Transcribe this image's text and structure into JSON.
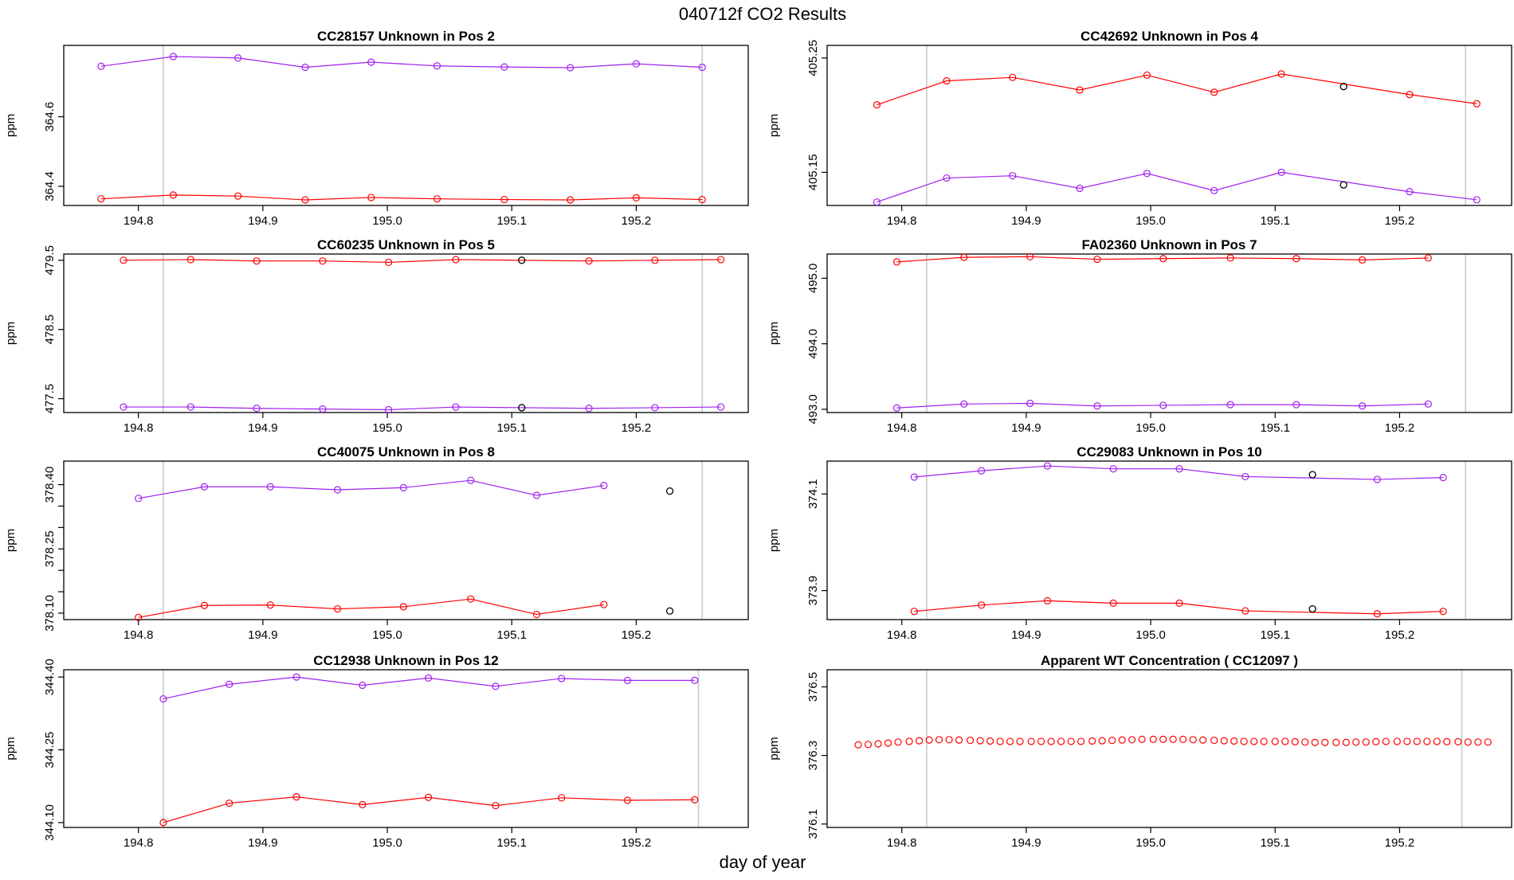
{
  "figure": {
    "title": "040712f   CO2 Results",
    "xlabel": "day of year"
  },
  "colors": {
    "red": "#ff0000",
    "purple": "#a020f0",
    "ref": "#c8c8c8",
    "frame": "#000000",
    "outlier": "#000000"
  },
  "chart_data": [
    {
      "type": "line",
      "title": "CC28157    Unknown in Pos 2",
      "ylabel": "ppm",
      "xlim": [
        194.74,
        195.29
      ],
      "ylim": [
        364.345,
        364.805
      ],
      "xticks": [
        194.8,
        194.9,
        195.0,
        195.1,
        195.2
      ],
      "xtick_labels": [
        "194.8",
        "194.9",
        "195.0",
        "195.1",
        "195.2"
      ],
      "yticks": [
        364.4,
        364.6
      ],
      "ytick_labels": [
        "364.4",
        "364.6"
      ],
      "vlines": [
        194.82,
        195.253
      ],
      "series": [
        {
          "name": "purple",
          "color": "#a020f0",
          "x": [
            194.77,
            194.828,
            194.88,
            194.934,
            194.987,
            195.04,
            195.094,
            195.147,
            195.2,
            195.253
          ],
          "y": [
            364.745,
            364.773,
            364.769,
            364.742,
            364.757,
            364.746,
            364.743,
            364.741,
            364.752,
            364.742
          ]
        },
        {
          "name": "red",
          "color": "#ff0000",
          "x": [
            194.77,
            194.828,
            194.88,
            194.934,
            194.987,
            195.04,
            195.094,
            195.147,
            195.2,
            195.253
          ],
          "y": [
            364.364,
            364.375,
            364.372,
            364.361,
            364.368,
            364.364,
            364.362,
            364.361,
            364.367,
            364.362
          ]
        }
      ],
      "outliers": []
    },
    {
      "type": "line",
      "title": "CC42692    Unknown in Pos 4",
      "ylabel": "ppm",
      "xlim": [
        194.74,
        195.29
      ],
      "ylim": [
        405.121,
        405.261
      ],
      "xticks": [
        194.8,
        194.9,
        195.0,
        195.1,
        195.2
      ],
      "xtick_labels": [
        "194.8",
        "194.9",
        "195.0",
        "195.1",
        "195.2"
      ],
      "yticks": [
        405.15,
        405.25
      ],
      "ytick_labels": [
        "405.15",
        "405.25"
      ],
      "vlines": [
        194.82,
        195.253
      ],
      "series": [
        {
          "name": "red",
          "color": "#ff0000",
          "x": [
            194.78,
            194.836,
            194.889,
            194.943,
            194.997,
            195.051,
            195.105,
            195.208,
            195.262
          ],
          "y": [
            405.209,
            405.23,
            405.233,
            405.222,
            405.235,
            405.22,
            405.236,
            405.218,
            405.21
          ]
        },
        {
          "name": "purple",
          "color": "#a020f0",
          "x": [
            194.78,
            194.836,
            194.889,
            194.943,
            194.997,
            195.051,
            195.105,
            195.208,
            195.262
          ],
          "y": [
            405.124,
            405.145,
            405.147,
            405.136,
            405.149,
            405.134,
            405.15,
            405.133,
            405.126
          ]
        }
      ],
      "outliers": [
        {
          "x": 195.155,
          "y": 405.225
        },
        {
          "x": 195.155,
          "y": 405.139
        }
      ]
    },
    {
      "type": "line",
      "title": "CC60235    Unknown in Pos 5",
      "ylabel": "ppm",
      "xlim": [
        194.74,
        195.29
      ],
      "ylim": [
        477.3,
        479.59
      ],
      "xticks": [
        194.8,
        194.9,
        195.0,
        195.1,
        195.2
      ],
      "xtick_labels": [
        "194.8",
        "194.9",
        "195.0",
        "195.1",
        "195.2"
      ],
      "yticks": [
        477.5,
        478.5,
        479.5
      ],
      "ytick_labels": [
        "477.5",
        "478.5",
        "479.5"
      ],
      "vlines": [
        194.82,
        195.253
      ],
      "series": [
        {
          "name": "red",
          "color": "#ff0000",
          "x": [
            194.788,
            194.842,
            194.895,
            194.948,
            195.001,
            195.055,
            195.162,
            195.215,
            195.268
          ],
          "y": [
            479.5,
            479.51,
            479.49,
            479.49,
            479.47,
            479.51,
            479.49,
            479.5,
            479.51
          ]
        },
        {
          "name": "purple",
          "color": "#a020f0",
          "x": [
            194.788,
            194.842,
            194.895,
            194.948,
            195.001,
            195.055,
            195.162,
            195.215,
            195.268
          ],
          "y": [
            477.38,
            477.38,
            477.36,
            477.35,
            477.34,
            477.38,
            477.36,
            477.37,
            477.38
          ]
        }
      ],
      "outliers": [
        {
          "x": 195.108,
          "y": 479.5
        },
        {
          "x": 195.108,
          "y": 477.37
        }
      ]
    },
    {
      "type": "line",
      "title": "FA02360    Unknown in Pos 7",
      "ylabel": "ppm",
      "xlim": [
        194.74,
        195.29
      ],
      "ylim": [
        492.95,
        495.37
      ],
      "xticks": [
        194.8,
        194.9,
        195.0,
        195.1,
        195.2
      ],
      "xtick_labels": [
        "194.8",
        "194.9",
        "195.0",
        "195.1",
        "195.2"
      ],
      "yticks": [
        493.0,
        494.0,
        495.0
      ],
      "ytick_labels": [
        "493.0",
        "494.0",
        "495.0"
      ],
      "vlines": [
        194.82,
        195.253
      ],
      "series": [
        {
          "name": "red",
          "color": "#ff0000",
          "x": [
            194.796,
            194.85,
            194.903,
            194.957,
            195.01,
            195.064,
            195.117,
            195.17,
            195.223
          ],
          "y": [
            495.25,
            495.32,
            495.33,
            495.29,
            495.3,
            495.31,
            495.3,
            495.28,
            495.31
          ]
        },
        {
          "name": "purple",
          "color": "#a020f0",
          "x": [
            194.796,
            194.85,
            194.903,
            194.957,
            195.01,
            195.064,
            195.117,
            195.17,
            195.223
          ],
          "y": [
            493.02,
            493.08,
            493.09,
            493.05,
            493.06,
            493.07,
            493.07,
            493.05,
            493.08
          ]
        }
      ],
      "outliers": []
    },
    {
      "type": "line",
      "title": "CC40075    Unknown in Pos 8",
      "ylabel": "ppm",
      "xlim": [
        194.74,
        195.29
      ],
      "ylim": [
        378.085,
        378.455
      ],
      "xticks": [
        194.8,
        194.9,
        195.0,
        195.1,
        195.2
      ],
      "xtick_labels": [
        "194.8",
        "194.9",
        "195.0",
        "195.1",
        "195.2"
      ],
      "yticks": [
        378.1,
        378.15,
        378.2,
        378.25,
        378.3,
        378.35,
        378.4
      ],
      "ytick_labels": [
        "378.10",
        "",
        "",
        "378.25",
        "",
        "",
        "378.40"
      ],
      "vlines": [
        194.82,
        195.253
      ],
      "series": [
        {
          "name": "purple",
          "color": "#a020f0",
          "x": [
            194.8,
            194.853,
            194.906,
            194.96,
            195.013,
            195.067,
            195.12,
            195.174
          ],
          "y": [
            378.368,
            378.395,
            378.395,
            378.388,
            378.393,
            378.41,
            378.375,
            378.398
          ]
        },
        {
          "name": "red",
          "color": "#ff0000",
          "x": [
            194.8,
            194.853,
            194.906,
            194.96,
            195.013,
            195.067,
            195.12,
            195.174
          ],
          "y": [
            378.09,
            378.118,
            378.119,
            378.11,
            378.115,
            378.133,
            378.097,
            378.12
          ]
        }
      ],
      "outliers": [
        {
          "x": 195.227,
          "y": 378.385
        },
        {
          "x": 195.227,
          "y": 378.105
        }
      ]
    },
    {
      "type": "line",
      "title": "CC29083    Unknown in Pos 10",
      "ylabel": "ppm",
      "xlim": [
        194.74,
        195.29
      ],
      "ylim": [
        373.84,
        374.168
      ],
      "xticks": [
        194.8,
        194.9,
        195.0,
        195.1,
        195.2
      ],
      "xtick_labels": [
        "194.8",
        "194.9",
        "195.0",
        "195.1",
        "195.2"
      ],
      "yticks": [
        373.9,
        374.1
      ],
      "ytick_labels": [
        "373.9",
        "374.1"
      ],
      "vlines": [
        194.82,
        195.253
      ],
      "series": [
        {
          "name": "purple",
          "color": "#a020f0",
          "x": [
            194.81,
            194.864,
            194.917,
            194.97,
            195.023,
            195.076,
            195.182,
            195.235
          ],
          "y": [
            374.135,
            374.148,
            374.158,
            374.152,
            374.152,
            374.136,
            374.13,
            374.134
          ]
        },
        {
          "name": "red",
          "color": "#ff0000",
          "x": [
            194.81,
            194.864,
            194.917,
            194.97,
            195.023,
            195.076,
            195.182,
            195.235
          ],
          "y": [
            373.857,
            373.87,
            373.879,
            373.874,
            373.874,
            373.858,
            373.852,
            373.857
          ]
        }
      ],
      "outliers": [
        {
          "x": 195.13,
          "y": 374.14
        },
        {
          "x": 195.13,
          "y": 373.862
        }
      ]
    },
    {
      "type": "line",
      "title": "CC12938    Unknown in Pos 12",
      "ylabel": "ppm",
      "xlim": [
        194.74,
        195.29
      ],
      "ylim": [
        344.09,
        344.415
      ],
      "xticks": [
        194.8,
        194.9,
        195.0,
        195.1,
        195.2
      ],
      "xtick_labels": [
        "194.8",
        "194.9",
        "195.0",
        "195.1",
        "195.2"
      ],
      "yticks": [
        344.1,
        344.25,
        344.4
      ],
      "ytick_labels": [
        "344.10",
        "344.25",
        "344.40"
      ],
      "vlines": [
        194.82,
        195.25
      ],
      "series": [
        {
          "name": "purple",
          "color": "#a020f0",
          "x": [
            194.82,
            194.873,
            194.927,
            194.98,
            195.033,
            195.087,
            195.14,
            195.193,
            195.247
          ],
          "y": [
            344.355,
            344.385,
            344.4,
            344.383,
            344.398,
            344.381,
            344.397,
            344.393,
            344.393
          ]
        },
        {
          "name": "red",
          "color": "#ff0000",
          "x": [
            194.82,
            194.873,
            194.927,
            194.98,
            195.033,
            195.087,
            195.14,
            195.193,
            195.247
          ],
          "y": [
            344.1,
            344.14,
            344.153,
            344.137,
            344.152,
            344.135,
            344.151,
            344.146,
            344.147
          ]
        }
      ],
      "outliers": []
    },
    {
      "type": "scatter",
      "title": "Apparent WT Concentration ( CC12097 )",
      "ylabel": "ppm",
      "xlim": [
        194.74,
        195.29
      ],
      "ylim": [
        376.09,
        376.55
      ],
      "xticks": [
        194.8,
        194.9,
        195.0,
        195.1,
        195.2
      ],
      "xtick_labels": [
        "194.8",
        "194.9",
        "195.0",
        "195.1",
        "195.2"
      ],
      "yticks": [
        376.1,
        376.3,
        376.5
      ],
      "ytick_labels": [
        "376.1",
        "376.3",
        "376.5"
      ],
      "vlines": [
        194.82,
        195.25
      ],
      "series": [
        {
          "name": "red",
          "color": "#ff0000",
          "x": [
            194.765,
            194.773,
            194.781,
            194.789,
            194.797,
            194.806,
            194.814,
            194.822,
            194.83,
            194.838,
            194.846,
            194.855,
            194.863,
            194.871,
            194.879,
            194.887,
            194.895,
            194.904,
            194.912,
            194.92,
            194.928,
            194.936,
            194.944,
            194.953,
            194.961,
            194.969,
            194.977,
            194.985,
            194.993,
            195.002,
            195.01,
            195.018,
            195.026,
            195.034,
            195.042,
            195.051,
            195.059,
            195.067,
            195.075,
            195.083,
            195.091,
            195.1,
            195.108,
            195.116,
            195.124,
            195.132,
            195.14,
            195.149,
            195.157,
            195.165,
            195.173,
            195.181,
            195.189,
            195.198,
            195.206,
            195.214,
            195.222,
            195.23,
            195.238,
            195.247,
            195.255,
            195.263,
            195.271
          ],
          "y": [
            376.331,
            376.332,
            376.334,
            376.336,
            376.339,
            376.341,
            376.343,
            376.345,
            376.346,
            376.346,
            376.345,
            376.344,
            376.343,
            376.342,
            376.341,
            376.341,
            376.341,
            376.341,
            376.341,
            376.341,
            376.341,
            376.341,
            376.341,
            376.342,
            376.343,
            376.344,
            376.345,
            376.346,
            376.347,
            376.347,
            376.347,
            376.347,
            376.347,
            376.346,
            376.345,
            376.344,
            376.343,
            376.342,
            376.341,
            376.341,
            376.341,
            376.341,
            376.341,
            376.34,
            376.339,
            376.338,
            376.338,
            376.338,
            376.338,
            376.339,
            376.339,
            376.34,
            376.341,
            376.341,
            376.341,
            376.341,
            376.341,
            376.341,
            376.34,
            376.34,
            376.339,
            376.339,
            376.339
          ]
        }
      ],
      "outliers": []
    }
  ]
}
